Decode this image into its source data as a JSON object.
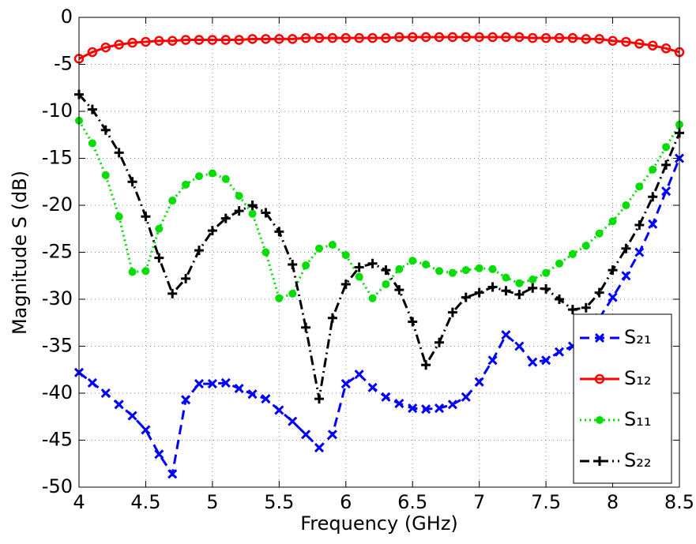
{
  "chart_data": {
    "type": "line",
    "xlabel": "Frequency (GHz)",
    "ylabel": "Magnitude S (dB)",
    "x": [
      4.0,
      4.1,
      4.2,
      4.3,
      4.4,
      4.5,
      4.6,
      4.7,
      4.8,
      4.9,
      5.0,
      5.1,
      5.2,
      5.3,
      5.4,
      5.5,
      5.6,
      5.7,
      5.8,
      5.9,
      6.0,
      6.1,
      6.2,
      6.3,
      6.4,
      6.5,
      6.6,
      6.7,
      6.8,
      6.9,
      7.0,
      7.1,
      7.2,
      7.3,
      7.4,
      7.5,
      7.6,
      7.7,
      7.8,
      7.9,
      8.0,
      8.1,
      8.2,
      8.3,
      8.4,
      8.5
    ],
    "series": [
      {
        "name": "S₂₁",
        "color": "#0000ff",
        "dash": "dashed",
        "marker": "x",
        "values": [
          -37.8,
          -38.9,
          -40,
          -41.2,
          -42.4,
          -43.9,
          -46.5,
          -48.6,
          -40.7,
          -39,
          -39,
          -38.9,
          -39.5,
          -40.1,
          -40.6,
          -41.8,
          -43,
          -44.4,
          -45.8,
          -44.4,
          -39,
          -38,
          -39.4,
          -40.4,
          -41.1,
          -41.6,
          -41.7,
          -41.6,
          -41.2,
          -40.4,
          -38.8,
          -36.5,
          -33.8,
          -35,
          -36.7,
          -36.5,
          -35.6,
          -35,
          -33.5,
          -32,
          -29.8,
          -27.5,
          -25,
          -22,
          -18.5,
          -15
        ]
      },
      {
        "name": "S₁₂",
        "color": "#ff0000",
        "dash": "solid",
        "marker": "circle",
        "values": [
          -4.4,
          -3.7,
          -3.2,
          -2.9,
          -2.7,
          -2.6,
          -2.5,
          -2.5,
          -2.4,
          -2.4,
          -2.4,
          -2.4,
          -2.4,
          -2.3,
          -2.3,
          -2.3,
          -2.3,
          -2.2,
          -2.2,
          -2.2,
          -2.2,
          -2.2,
          -2.2,
          -2.2,
          -2.1,
          -2.1,
          -2.1,
          -2.1,
          -2.1,
          -2.1,
          -2.1,
          -2.1,
          -2.1,
          -2.1,
          -2.2,
          -2.2,
          -2.2,
          -2.2,
          -2.3,
          -2.3,
          -2.5,
          -2.6,
          -2.8,
          -3.0,
          -3.3,
          -3.7
        ]
      },
      {
        "name": "S₁₁",
        "color": "#00dd00",
        "dash": "dotted",
        "marker": "dot",
        "values": [
          -11,
          -13.4,
          -16.8,
          -21.2,
          -27.1,
          -27,
          -22.5,
          -19.5,
          -17.8,
          -16.9,
          -16.6,
          -17.2,
          -19,
          -20.9,
          -25,
          -29.9,
          -29.4,
          -26.4,
          -24.6,
          -24.2,
          -25.3,
          -27.6,
          -29.9,
          -28.4,
          -26.8,
          -25.9,
          -26.3,
          -27,
          -27.2,
          -26.9,
          -26.7,
          -26.8,
          -27.7,
          -28.3,
          -27.9,
          -27.2,
          -26.2,
          -25.2,
          -24.3,
          -23,
          -21.7,
          -20,
          -18,
          -16.2,
          -13.8,
          -11.4
        ]
      },
      {
        "name": "S₂₂",
        "color": "#000000",
        "dash": "dashdot",
        "marker": "plus",
        "values": [
          -8.2,
          -9.8,
          -12,
          -14.4,
          -17.5,
          -21.2,
          -25.6,
          -29.4,
          -27.8,
          -24.8,
          -22.7,
          -21.4,
          -20.6,
          -20,
          -20.8,
          -22.8,
          -26.3,
          -33,
          -40.6,
          -32,
          -28.4,
          -26.6,
          -26.2,
          -26.9,
          -29,
          -32.4,
          -37,
          -34.6,
          -31.4,
          -29.8,
          -29.3,
          -28.7,
          -29.1,
          -29.5,
          -28.8,
          -28.9,
          -30,
          -31.1,
          -30.9,
          -29.3,
          -26.9,
          -24.6,
          -22.1,
          -19.1,
          -15.7,
          -12.3
        ]
      }
    ],
    "xlim": [
      4,
      8.5
    ],
    "xticks": [
      4,
      4.5,
      5,
      5.5,
      6,
      6.5,
      7,
      7.5,
      8,
      8.5
    ],
    "ylim": [
      -50,
      0
    ],
    "yticks": [
      -50,
      -45,
      -40,
      -35,
      -30,
      -25,
      -20,
      -15,
      -10,
      -5,
      0
    ],
    "grid": true,
    "legend": "lower right"
  }
}
